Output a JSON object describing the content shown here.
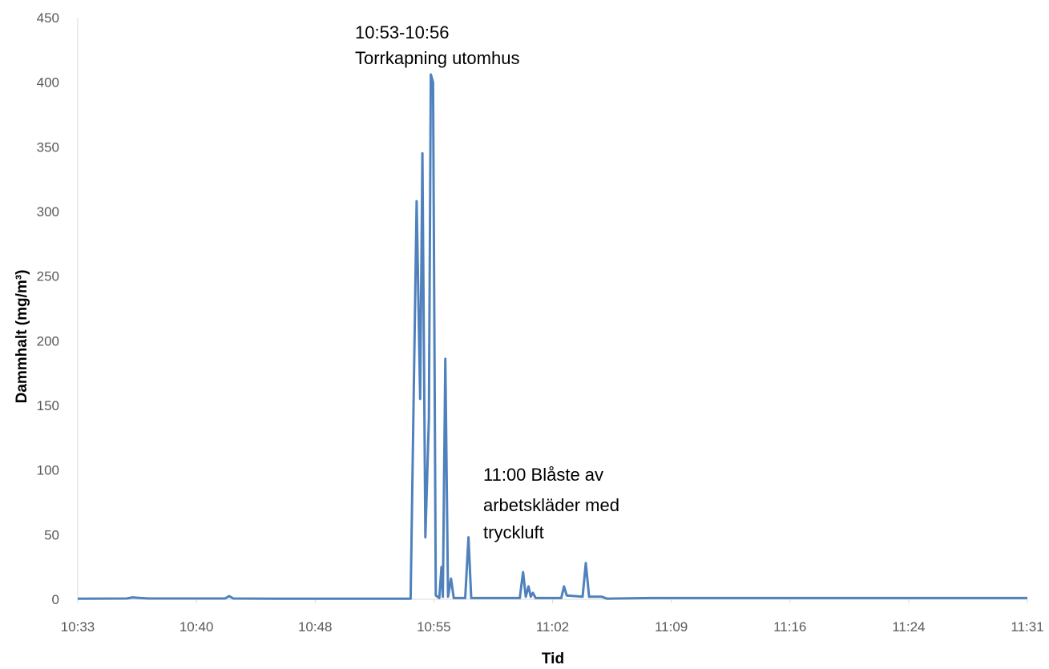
{
  "chart_data": {
    "type": "line",
    "xlabel": "Tid",
    "ylabel": "Dammhalt (mg/m³)",
    "ylim": [
      0,
      450
    ],
    "yticks": [
      "0",
      "50",
      "100",
      "150",
      "200",
      "250",
      "300",
      "350",
      "400",
      "450"
    ],
    "xlim": [
      "10:33",
      "11:31"
    ],
    "xticks": [
      "10:33",
      "10:40",
      "10:48",
      "10:55",
      "11:02",
      "11:09",
      "11:16",
      "11:24",
      "11:31"
    ],
    "grid": false,
    "legend": "none",
    "series": [
      {
        "color": "#4f81bd",
        "points": [
          [
            "10:33:00",
            0.5
          ],
          [
            "10:36:00",
            0.6
          ],
          [
            "10:36:20",
            1.5
          ],
          [
            "10:36:50",
            1.0
          ],
          [
            "10:37:20",
            0.6
          ],
          [
            "10:42:00",
            0.6
          ],
          [
            "10:42:15",
            2.5
          ],
          [
            "10:42:30",
            0.6
          ],
          [
            "10:45:00",
            0.5
          ],
          [
            "10:53:20",
            0.5
          ],
          [
            "10:53:42",
            308
          ],
          [
            "10:53:55",
            155
          ],
          [
            "10:54:03",
            345
          ],
          [
            "10:54:14",
            48
          ],
          [
            "10:54:27",
            140
          ],
          [
            "10:54:34",
            406
          ],
          [
            "10:54:42",
            400
          ],
          [
            "10:54:52",
            3
          ],
          [
            "10:55:05",
            1
          ],
          [
            "10:55:13",
            25
          ],
          [
            "10:55:18",
            2
          ],
          [
            "10:55:27",
            186
          ],
          [
            "10:55:37",
            2
          ],
          [
            "10:55:48",
            16
          ],
          [
            "10:55:58",
            1
          ],
          [
            "10:56:40",
            1
          ],
          [
            "10:56:52",
            48
          ],
          [
            "10:57:02",
            1
          ],
          [
            "11:00:00",
            1
          ],
          [
            "11:00:12",
            21
          ],
          [
            "11:00:22",
            2
          ],
          [
            "11:00:32",
            10
          ],
          [
            "11:00:40",
            2
          ],
          [
            "11:00:48",
            5
          ],
          [
            "11:00:58",
            1
          ],
          [
            "11:02:32",
            1
          ],
          [
            "11:02:42",
            10
          ],
          [
            "11:02:52",
            3
          ],
          [
            "11:03:50",
            2
          ],
          [
            "11:04:02",
            28
          ],
          [
            "11:04:14",
            2
          ],
          [
            "11:05:00",
            2
          ],
          [
            "11:05:20",
            0.5
          ],
          [
            "11:08:00",
            1
          ],
          [
            "11:10:00",
            1
          ],
          [
            "11:20:00",
            1
          ],
          [
            "11:31:00",
            1
          ]
        ]
      }
    ],
    "annotations": [
      {
        "lines": [
          "10:53-10:56",
          "Torrkapning utomhus"
        ]
      },
      {
        "lines": [
          "11:00 Blåste av",
          "arbetskläder med",
          "tryckluft"
        ]
      }
    ]
  }
}
